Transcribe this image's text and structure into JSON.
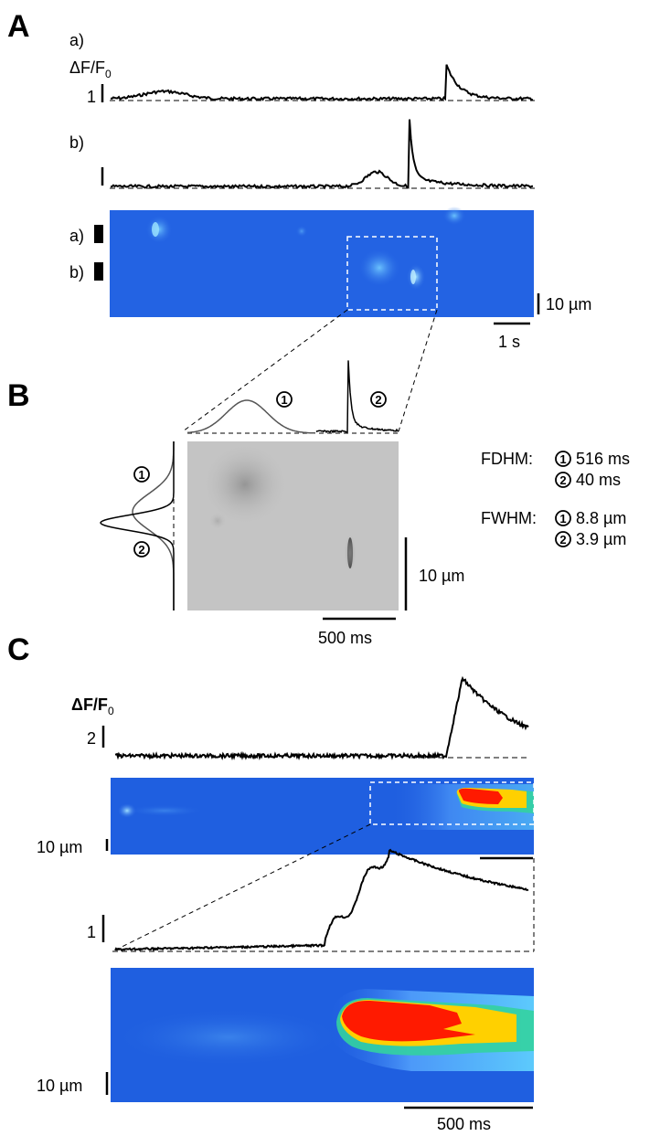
{
  "panels": {
    "A": {
      "letter": "A",
      "trace_a_label": "a)",
      "trace_b_label": "b)",
      "y_label_main": "ΔF/F",
      "y_label_sub": "0",
      "y_scale_value": "1",
      "image_row_a_label": "a)",
      "image_row_b_label": "b)",
      "scale_space": "10 µm",
      "scale_time": "1 s"
    },
    "B": {
      "letter": "B",
      "event1": "1",
      "event2": "2",
      "fdhm_label": "FDHM:",
      "fdhm_1": "516 ms",
      "fdhm_2": "40 ms",
      "fwhm_label": "FWHM:",
      "fwhm_1": "8.8 µm",
      "fwhm_2": "3.9 µm",
      "scale_space": "10 µm",
      "scale_time": "500 ms"
    },
    "C": {
      "letter": "C",
      "y_label_main": "ΔF/F",
      "y_label_sub": "0",
      "y_scale_top": "2",
      "y_scale_zoom": "1",
      "scale_space_top": "10 µm",
      "scale_space_bottom": "10 µm",
      "scale_time": "500 ms"
    }
  },
  "colors": {
    "trace": "#000000",
    "gauss_event1": "#555555",
    "gauss_event2": "#000000",
    "linescan_background": "#1f5fe0",
    "dashed_box": "#ffffff",
    "grayscale_background": "#c4c4c4"
  }
}
